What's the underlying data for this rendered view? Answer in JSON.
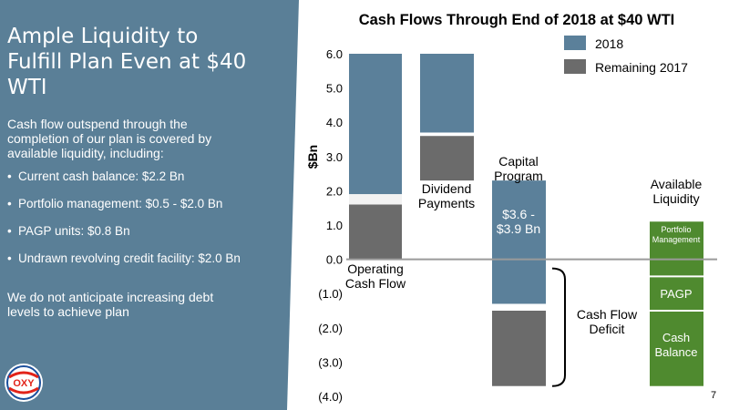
{
  "slide": {
    "title": "Ample Liquidity to Fulfill Plan Even at $40 WTI",
    "intro": "Cash flow outspend through the completion of our plan is covered by available liquidity, including:",
    "bullets": [
      "Current cash balance: $2.2 Bn",
      "Portfolio management: $0.5 - $2.0 Bn",
      "PAGP units: $0.8 Bn",
      "Undrawn revolving credit facility: $2.0 Bn"
    ],
    "closing": "We do not anticipate increasing debt levels to achieve plan",
    "logo_text": "OXY",
    "page_number": "7"
  },
  "colors": {
    "panel": "#5a7f97",
    "series_2018": "#5b809a",
    "series_remaining_2017": "#6b6b6b",
    "liquidity": "#4f8a2f",
    "zero_line": "#9a9a9a"
  },
  "chart_data": {
    "type": "bar",
    "title": "Cash Flows Through End of 2018 at $40 WTI",
    "ylabel": "$Bn",
    "ylim": [
      -4.0,
      6.0
    ],
    "yticks": [
      "(4.0)",
      "(3.0)",
      "(2.0)",
      "(1.0)",
      "0.0",
      "1.0",
      "2.0",
      "3.0",
      "4.0",
      "5.0",
      "6.0"
    ],
    "ytick_values": [
      -4,
      -3,
      -2,
      -1,
      0,
      1,
      2,
      3,
      4,
      5,
      6
    ],
    "legend": [
      {
        "name": "2018",
        "color": "#5b809a"
      },
      {
        "name": "Remaining 2017",
        "color": "#6b6b6b"
      }
    ],
    "categories": [
      "Operating Cash Flow",
      "Dividend Payments",
      "Capital Program",
      "Available Liquidity"
    ],
    "segments": [
      {
        "category": "Operating Cash Flow",
        "series": "Remaining 2017",
        "from": 0.0,
        "to": 1.6
      },
      {
        "category": "Operating Cash Flow",
        "series": "2018",
        "from": 1.9,
        "to": 6.0
      },
      {
        "category": "Dividend Payments",
        "series": "Remaining 2017",
        "from": 2.3,
        "to": 3.6
      },
      {
        "category": "Dividend Payments",
        "series": "2018",
        "from": 3.7,
        "to": 6.0
      },
      {
        "category": "Capital Program",
        "series": "2018",
        "from": -1.3,
        "to": 2.3
      },
      {
        "category": "Capital Program",
        "series": "Remaining 2017",
        "from": -3.7,
        "to": -1.5
      },
      {
        "category": "Available Liquidity",
        "series": "Portfolio Management",
        "from": 1.1,
        "to": -0.5
      },
      {
        "category": "Available Liquidity",
        "series": "PAGP",
        "from": -0.5,
        "to": -1.5
      },
      {
        "category": "Available Liquidity",
        "series": "Cash Balance",
        "from": -1.5,
        "to": -3.7
      }
    ],
    "annotations": {
      "capital_program_value": "$3.6 -\n$3.9 Bn",
      "deficit_label": "Cash Flow\nDeficit",
      "deficit_range": [
        -3.7,
        0.0
      ],
      "liquidity_labels": [
        "Portfolio\nManagement",
        "PAGP",
        "Cash\nBalance"
      ]
    }
  }
}
